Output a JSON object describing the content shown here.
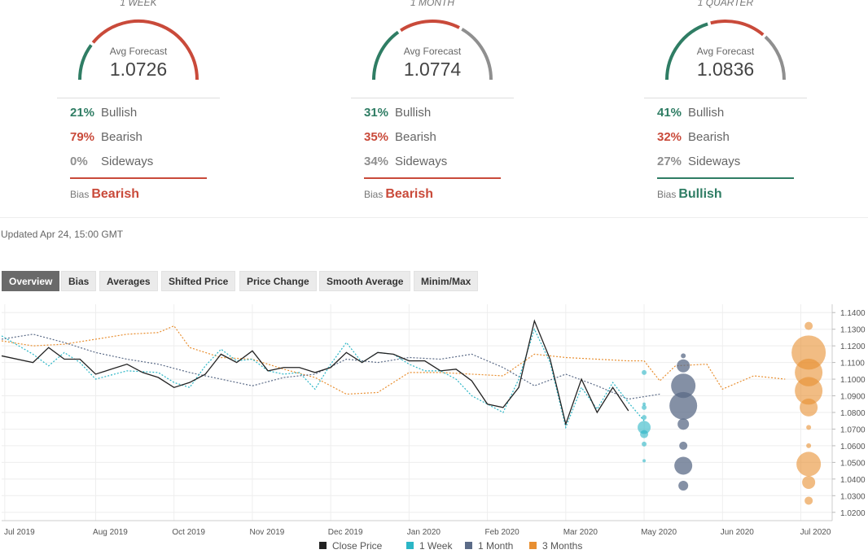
{
  "colors": {
    "bullish": "#2f7d64",
    "bearish": "#c94a3a",
    "sideways": "#8f8f8f",
    "close": "#222222",
    "week": "#2bb6c6",
    "month": "#5b6b87",
    "quarter": "#e88f31"
  },
  "panels": [
    {
      "title": "1 WEEK",
      "avg_label": "Avg Forecast",
      "avg_value": "1.0726",
      "gauge": [
        21,
        79,
        0
      ],
      "bullish_pct": "21%",
      "bearish_pct": "79%",
      "sideways_pct": "0%",
      "bullish_label": "Bullish",
      "bearish_label": "Bearish",
      "sideways_label": "Sideways",
      "bias_label": "Bias",
      "bias_value": "Bearish",
      "bias_type": "bearish"
    },
    {
      "title": "1 MONTH",
      "avg_label": "Avg Forecast",
      "avg_value": "1.0774",
      "gauge": [
        31,
        35,
        34
      ],
      "bullish_pct": "31%",
      "bearish_pct": "35%",
      "sideways_pct": "34%",
      "bullish_label": "Bullish",
      "bearish_label": "Bearish",
      "sideways_label": "Sideways",
      "bias_label": "Bias",
      "bias_value": "Bearish",
      "bias_type": "bearish"
    },
    {
      "title": "1 QUARTER",
      "avg_label": "Avg Forecast",
      "avg_value": "1.0836",
      "gauge": [
        41,
        32,
        27
      ],
      "bullish_pct": "41%",
      "bearish_pct": "32%",
      "sideways_pct": "27%",
      "bullish_label": "Bullish",
      "bearish_label": "Bearish",
      "sideways_label": "Sideways",
      "bias_label": "Bias",
      "bias_value": "Bullish",
      "bias_type": "bullish"
    }
  ],
  "updated": "Updated Apr 24, 15:00 GMT",
  "tabs": [
    "Overview",
    "Bias",
    "Averages",
    "Shifted Price",
    "Price Change",
    "Smooth Average",
    "Minim/Max"
  ],
  "active_tab": "Overview",
  "chart_data": {
    "type": "line",
    "x_ticks": [
      "Jul 2019",
      "Aug 2019",
      "Oct 2019",
      "Nov 2019",
      "Dec 2019",
      "Jan 2020",
      "Feb 2020",
      "Mar 2020",
      "May 2020",
      "Jun 2020",
      "Jul 2020"
    ],
    "y_ticks": [
      "1.1400",
      "1.1300",
      "1.1200",
      "1.1100",
      "1.1000",
      "1.0900",
      "1.0800",
      "1.0700",
      "1.0600",
      "1.0500",
      "1.0400",
      "1.0300",
      "1.0200"
    ],
    "ylim": [
      1.015,
      1.145
    ],
    "grid": true,
    "legend_position": "bottom",
    "series": [
      {
        "name": "Close Price",
        "style": "solid",
        "color": "#222222",
        "values": [
          [
            0,
            1.114
          ],
          [
            4,
            1.11
          ],
          [
            6,
            1.119
          ],
          [
            8,
            1.112
          ],
          [
            10,
            1.112
          ],
          [
            12,
            1.103
          ],
          [
            14,
            1.106
          ],
          [
            16,
            1.109
          ],
          [
            18,
            1.104
          ],
          [
            20,
            1.101
          ],
          [
            22,
            1.095
          ],
          [
            24,
            1.098
          ],
          [
            26,
            1.103
          ],
          [
            28,
            1.115
          ],
          [
            30,
            1.11
          ],
          [
            32,
            1.117
          ],
          [
            34,
            1.105
          ],
          [
            36,
            1.107
          ],
          [
            38,
            1.107
          ],
          [
            40,
            1.104
          ],
          [
            42,
            1.107
          ],
          [
            44,
            1.116
          ],
          [
            46,
            1.11
          ],
          [
            48,
            1.116
          ],
          [
            50,
            1.115
          ],
          [
            52,
            1.111
          ],
          [
            54,
            1.111
          ],
          [
            56,
            1.105
          ],
          [
            58,
            1.106
          ],
          [
            60,
            1.099
          ],
          [
            62,
            1.085
          ],
          [
            64,
            1.083
          ],
          [
            66,
            1.095
          ],
          [
            68,
            1.135
          ],
          [
            70,
            1.112
          ],
          [
            72,
            1.073
          ],
          [
            74,
            1.1
          ],
          [
            76,
            1.08
          ],
          [
            78,
            1.095
          ],
          [
            80,
            1.081
          ]
        ]
      },
      {
        "name": "1 Week",
        "style": "dotted",
        "color": "#2bb6c6",
        "values": [
          [
            0,
            1.126
          ],
          [
            4,
            1.115
          ],
          [
            6,
            1.108
          ],
          [
            8,
            1.116
          ],
          [
            10,
            1.11
          ],
          [
            12,
            1.1
          ],
          [
            16,
            1.105
          ],
          [
            20,
            1.104
          ],
          [
            22,
            1.098
          ],
          [
            24,
            1.095
          ],
          [
            26,
            1.108
          ],
          [
            28,
            1.118
          ],
          [
            30,
            1.111
          ],
          [
            32,
            1.112
          ],
          [
            34,
            1.105
          ],
          [
            36,
            1.103
          ],
          [
            38,
            1.104
          ],
          [
            40,
            1.094
          ],
          [
            42,
            1.109
          ],
          [
            44,
            1.122
          ],
          [
            46,
            1.11
          ],
          [
            48,
            1.116
          ],
          [
            50,
            1.115
          ],
          [
            52,
            1.109
          ],
          [
            54,
            1.105
          ],
          [
            56,
            1.105
          ],
          [
            58,
            1.1
          ],
          [
            60,
            1.09
          ],
          [
            62,
            1.085
          ],
          [
            64,
            1.08
          ],
          [
            66,
            1.1
          ],
          [
            68,
            1.13
          ],
          [
            70,
            1.11
          ],
          [
            72,
            1.071
          ],
          [
            74,
            1.095
          ],
          [
            76,
            1.082
          ],
          [
            78,
            1.098
          ],
          [
            80,
            1.086
          ],
          [
            82,
            1.075
          ]
        ]
      },
      {
        "name": "1 Month",
        "style": "dotted",
        "color": "#5b6b87",
        "values": [
          [
            0,
            1.124
          ],
          [
            4,
            1.127
          ],
          [
            8,
            1.122
          ],
          [
            12,
            1.116
          ],
          [
            16,
            1.112
          ],
          [
            20,
            1.109
          ],
          [
            24,
            1.104
          ],
          [
            28,
            1.1
          ],
          [
            32,
            1.096
          ],
          [
            36,
            1.101
          ],
          [
            40,
            1.103
          ],
          [
            44,
            1.112
          ],
          [
            48,
            1.11
          ],
          [
            52,
            1.113
          ],
          [
            56,
            1.112
          ],
          [
            60,
            1.115
          ],
          [
            64,
            1.107
          ],
          [
            68,
            1.096
          ],
          [
            72,
            1.103
          ],
          [
            76,
            1.096
          ],
          [
            80,
            1.088
          ],
          [
            84,
            1.091
          ]
        ]
      },
      {
        "name": "3 Months",
        "style": "dotted",
        "color": "#e88f31",
        "values": [
          [
            0,
            1.123
          ],
          [
            4,
            1.12
          ],
          [
            8,
            1.121
          ],
          [
            12,
            1.124
          ],
          [
            16,
            1.127
          ],
          [
            20,
            1.128
          ],
          [
            22,
            1.132
          ],
          [
            24,
            1.119
          ],
          [
            28,
            1.113
          ],
          [
            32,
            1.112
          ],
          [
            36,
            1.106
          ],
          [
            40,
            1.101
          ],
          [
            44,
            1.091
          ],
          [
            48,
            1.092
          ],
          [
            52,
            1.104
          ],
          [
            56,
            1.104
          ],
          [
            60,
            1.103
          ],
          [
            64,
            1.102
          ],
          [
            68,
            1.115
          ],
          [
            72,
            1.113
          ],
          [
            76,
            1.112
          ],
          [
            80,
            1.111
          ],
          [
            82,
            1.111
          ],
          [
            84,
            1.099
          ],
          [
            86,
            1.108
          ],
          [
            90,
            1.109
          ],
          [
            92,
            1.094
          ],
          [
            96,
            1.102
          ],
          [
            100,
            1.1
          ]
        ]
      }
    ],
    "forecast_bubbles": [
      {
        "series": "1 Week",
        "x": 82,
        "points": [
          [
            1.104,
            3
          ],
          [
            1.085,
            2
          ],
          [
            1.083,
            3
          ],
          [
            1.077,
            3
          ],
          [
            1.071,
            8
          ],
          [
            1.067,
            5
          ],
          [
            1.061,
            3
          ],
          [
            1.051,
            2
          ]
        ]
      },
      {
        "series": "1 Month",
        "x": 87,
        "points": [
          [
            1.114,
            3
          ],
          [
            1.108,
            8
          ],
          [
            1.096,
            15
          ],
          [
            1.084,
            17
          ],
          [
            1.073,
            7
          ],
          [
            1.06,
            5
          ],
          [
            1.048,
            11
          ],
          [
            1.036,
            6
          ]
        ]
      },
      {
        "series": "3 Months",
        "x": 103,
        "points": [
          [
            1.132,
            5
          ],
          [
            1.116,
            21
          ],
          [
            1.104,
            17
          ],
          [
            1.093,
            17
          ],
          [
            1.083,
            11
          ],
          [
            1.071,
            3
          ],
          [
            1.06,
            3
          ],
          [
            1.049,
            15
          ],
          [
            1.038,
            8
          ],
          [
            1.027,
            5
          ]
        ]
      }
    ],
    "x_range": [
      0,
      106
    ]
  }
}
